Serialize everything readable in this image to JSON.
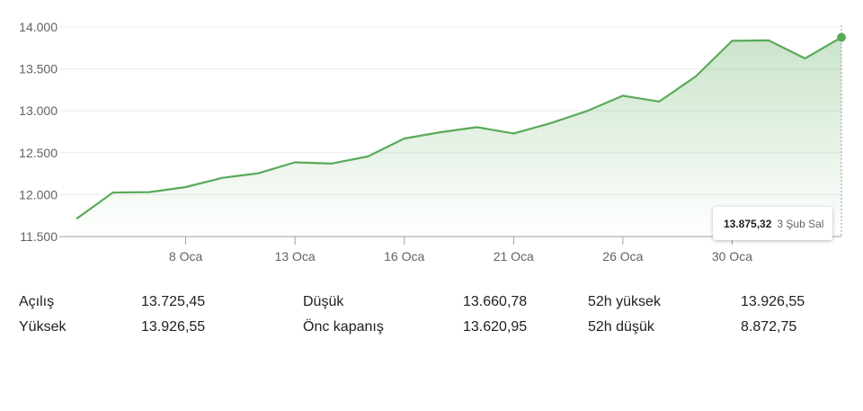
{
  "chart_data": {
    "type": "area",
    "title": "",
    "xlabel": "",
    "ylabel": "",
    "ylim": [
      11500,
      14000
    ],
    "yticks": [
      11500,
      12000,
      12500,
      13000,
      13500,
      14000
    ],
    "ytick_labels": [
      "11.500",
      "12.000",
      "12.500",
      "13.000",
      "13.500",
      "14.000"
    ],
    "xticks": [
      {
        "label": "8 Oca",
        "index": 3
      },
      {
        "label": "13 Oca",
        "index": 6
      },
      {
        "label": "16 Oca",
        "index": 9
      },
      {
        "label": "21 Oca",
        "index": 12
      },
      {
        "label": "26 Oca",
        "index": 15
      },
      {
        "label": "30 Oca",
        "index": 18
      }
    ],
    "values": [
      11710,
      12025,
      12030,
      12090,
      12200,
      12255,
      12385,
      12370,
      12455,
      12670,
      12745,
      12805,
      12730,
      12850,
      12995,
      13180,
      13110,
      13410,
      13835,
      13840,
      13625,
      13875.32
    ],
    "line_color": "#5aaa5a",
    "grid": true,
    "legend": "none"
  },
  "tooltip": {
    "value": "13.875,32",
    "date": "3 Şub Sal"
  },
  "stats": {
    "rows": [
      [
        {
          "label": "Açılış",
          "value": "13.725,45"
        },
        {
          "label": "Düşük",
          "value": "13.660,78"
        },
        {
          "label": "52h yüksek",
          "value": "13.926,55"
        }
      ],
      [
        {
          "label": "Yüksek",
          "value": "13.926,55"
        },
        {
          "label": "Önc kapanış",
          "value": "13.620,95"
        },
        {
          "label": "52h düşük",
          "value": "8.872,75"
        }
      ]
    ]
  }
}
